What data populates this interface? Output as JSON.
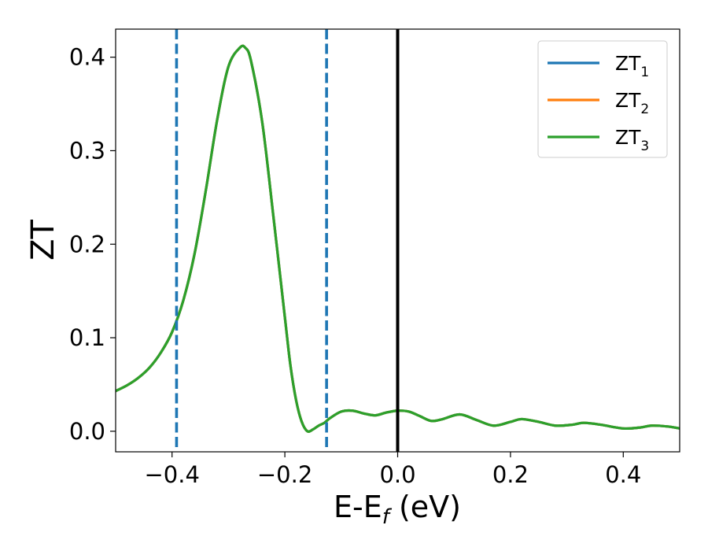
{
  "chart_data": {
    "type": "line",
    "title": "",
    "xlabel": {
      "main": "E-E",
      "sub": "f",
      "suffix": " (eV)"
    },
    "ylabel": "ZT",
    "xlim": [
      -0.5,
      0.5
    ],
    "ylim": [
      -0.022,
      0.43
    ],
    "xticks": [
      -0.4,
      -0.2,
      0.0,
      0.2,
      0.4
    ],
    "xtick_labels": [
      "−0.4",
      "−0.2",
      "0.0",
      "0.2",
      "0.4"
    ],
    "yticks": [
      0.0,
      0.1,
      0.2,
      0.3,
      0.4
    ],
    "ytick_labels": [
      "0.0",
      "0.1",
      "0.2",
      "0.3",
      "0.4"
    ],
    "grid": false,
    "legend": {
      "placement": "top-right"
    },
    "colors": {
      "ZT1": "#1f77b4",
      "ZT2": "#ff7f0e",
      "ZT3": "#2ca02c",
      "fermi_line": "#000000",
      "window_lines": "#1f77b4"
    },
    "vertical_lines": [
      {
        "x": -0.392,
        "style": "dashed",
        "color": "#1f77b4"
      },
      {
        "x": -0.126,
        "style": "dashed",
        "color": "#1f77b4"
      },
      {
        "x": 0.0,
        "style": "solid",
        "color": "#000000"
      }
    ],
    "x": [
      -0.5,
      -0.48,
      -0.46,
      -0.44,
      -0.42,
      -0.4,
      -0.38,
      -0.36,
      -0.34,
      -0.32,
      -0.3,
      -0.28,
      -0.27,
      -0.26,
      -0.24,
      -0.22,
      -0.2,
      -0.19,
      -0.18,
      -0.17,
      -0.16,
      -0.15,
      -0.14,
      -0.13,
      -0.12,
      -0.1,
      -0.08,
      -0.06,
      -0.04,
      -0.02,
      0.0,
      0.02,
      0.04,
      0.06,
      0.08,
      0.11,
      0.14,
      0.17,
      0.2,
      0.22,
      0.25,
      0.28,
      0.31,
      0.33,
      0.36,
      0.4,
      0.43,
      0.45,
      0.48,
      0.5
    ],
    "series": [
      {
        "name": "ZT",
        "sub": "1",
        "values": [
          0.043,
          0.049,
          0.057,
          0.068,
          0.084,
          0.106,
          0.14,
          0.19,
          0.258,
          0.333,
          0.39,
          0.41,
          0.41,
          0.396,
          0.33,
          0.228,
          0.122,
          0.07,
          0.033,
          0.01,
          0.0,
          0.002,
          0.006,
          0.009,
          0.014,
          0.021,
          0.022,
          0.019,
          0.017,
          0.02,
          0.022,
          0.021,
          0.016,
          0.011,
          0.013,
          0.018,
          0.012,
          0.006,
          0.01,
          0.013,
          0.01,
          0.006,
          0.007,
          0.009,
          0.007,
          0.003,
          0.004,
          0.006,
          0.005,
          0.003
        ]
      },
      {
        "name": "ZT",
        "sub": "2",
        "values": [
          0.043,
          0.049,
          0.057,
          0.068,
          0.084,
          0.106,
          0.14,
          0.19,
          0.258,
          0.333,
          0.39,
          0.41,
          0.41,
          0.396,
          0.33,
          0.228,
          0.122,
          0.07,
          0.033,
          0.01,
          0.0,
          0.002,
          0.006,
          0.009,
          0.014,
          0.021,
          0.022,
          0.019,
          0.017,
          0.02,
          0.022,
          0.021,
          0.016,
          0.011,
          0.013,
          0.018,
          0.012,
          0.006,
          0.01,
          0.013,
          0.01,
          0.006,
          0.007,
          0.009,
          0.007,
          0.003,
          0.004,
          0.006,
          0.005,
          0.003
        ]
      },
      {
        "name": "ZT",
        "sub": "3",
        "values": [
          0.043,
          0.049,
          0.057,
          0.068,
          0.084,
          0.106,
          0.14,
          0.19,
          0.258,
          0.333,
          0.39,
          0.41,
          0.41,
          0.396,
          0.33,
          0.228,
          0.122,
          0.07,
          0.033,
          0.01,
          0.0,
          0.002,
          0.006,
          0.009,
          0.014,
          0.021,
          0.022,
          0.019,
          0.017,
          0.02,
          0.022,
          0.021,
          0.016,
          0.011,
          0.013,
          0.018,
          0.012,
          0.006,
          0.01,
          0.013,
          0.01,
          0.006,
          0.007,
          0.009,
          0.007,
          0.003,
          0.004,
          0.006,
          0.005,
          0.003
        ]
      }
    ]
  }
}
